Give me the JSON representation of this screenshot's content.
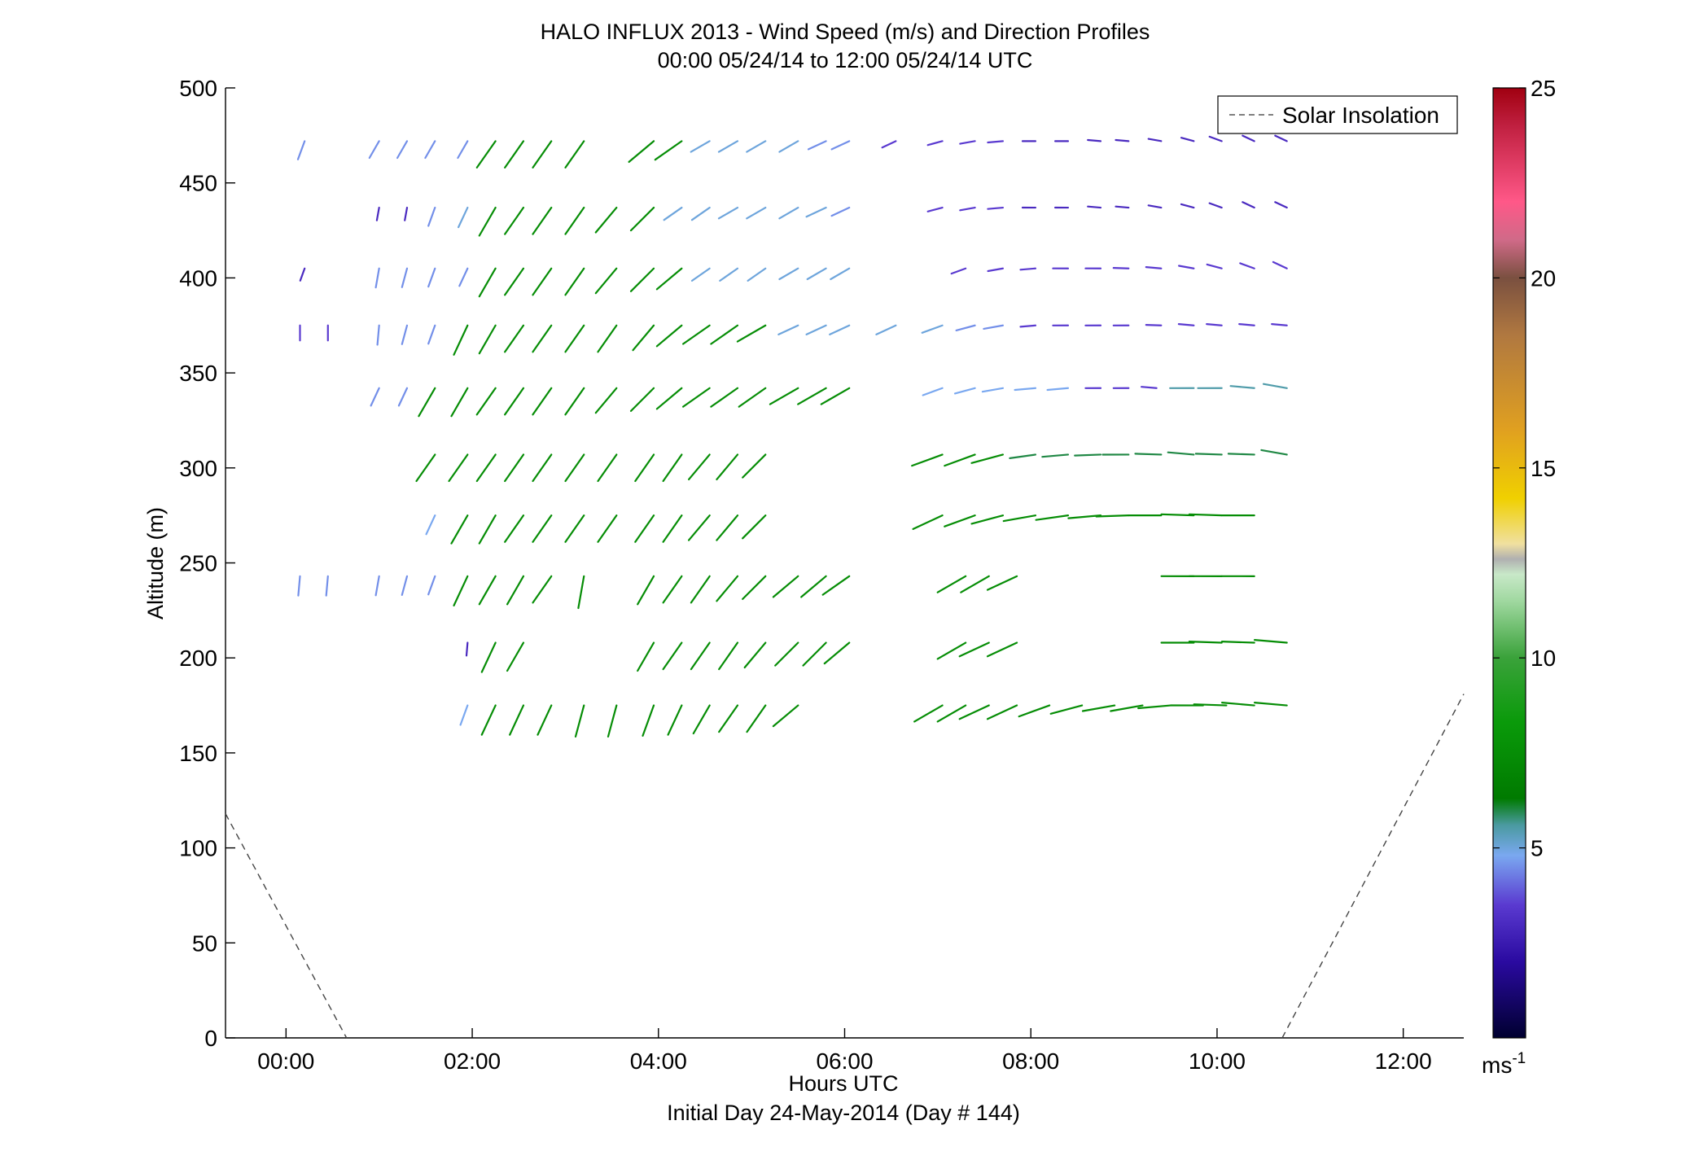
{
  "chart_data": {
    "type": "scatter",
    "title": "HALO INFLUX 2013 - Wind Speed (m/s) and Direction Profiles",
    "subtitle": "00:00 05/24/14 to 12:00 05/24/14  UTC",
    "xlabel": "Hours UTC",
    "xlabel2": "Initial Day 24-May-2014 (Day # 144)",
    "ylabel": "Altitude (m)",
    "xlim": [
      -0.65,
      12.65
    ],
    "ylim": [
      0,
      500
    ],
    "x_ticks": [
      {
        "value": 0,
        "label": "00:00"
      },
      {
        "value": 2,
        "label": "02:00"
      },
      {
        "value": 4,
        "label": "04:00"
      },
      {
        "value": 6,
        "label": "06:00"
      },
      {
        "value": 8,
        "label": "08:00"
      },
      {
        "value": 10,
        "label": "10:00"
      },
      {
        "value": 12,
        "label": "12:00"
      }
    ],
    "y_ticks": [
      {
        "value": 0,
        "label": "0"
      },
      {
        "value": 50,
        "label": "50"
      },
      {
        "value": 100,
        "label": "100"
      },
      {
        "value": 150,
        "label": "150"
      },
      {
        "value": 200,
        "label": "200"
      },
      {
        "value": 250,
        "label": "250"
      },
      {
        "value": 300,
        "label": "300"
      },
      {
        "value": 350,
        "label": "350"
      },
      {
        "value": 400,
        "label": "400"
      },
      {
        "value": 450,
        "label": "450"
      },
      {
        "value": 500,
        "label": "500"
      }
    ],
    "legend": {
      "label": "Solar Insolation",
      "position": "top-right"
    },
    "solar_insolation": [
      {
        "x": [
          -0.65,
          0.65
        ],
        "y": [
          118,
          0
        ]
      },
      {
        "x": [
          10.7,
          12.65
        ],
        "y": [
          0,
          181
        ]
      }
    ],
    "colorbar": {
      "min": 0,
      "max": 25,
      "ticks": [
        5,
        10,
        15,
        20,
        25
      ],
      "tick_labels": [
        "5",
        "10",
        "15",
        "20",
        "25"
      ],
      "unit_label": "ms",
      "unit_exponent": "-1",
      "stops": [
        {
          "v": 0,
          "color": "#000030"
        },
        {
          "v": 2,
          "color": "#2a0aa0"
        },
        {
          "v": 3.5,
          "color": "#5a3ad0"
        },
        {
          "v": 4.8,
          "color": "#7aa8f0"
        },
        {
          "v": 5.6,
          "color": "#4a9aa0"
        },
        {
          "v": 6.3,
          "color": "#007a00"
        },
        {
          "v": 8.3,
          "color": "#0a9a0a"
        },
        {
          "v": 10,
          "color": "#3aa23a"
        },
        {
          "v": 11.5,
          "color": "#a0d8a0"
        },
        {
          "v": 12.2,
          "color": "#c8e8c8"
        },
        {
          "v": 12.6,
          "color": "#b0b0b0"
        },
        {
          "v": 13,
          "color": "#f0e0a0"
        },
        {
          "v": 14.2,
          "color": "#f0d000"
        },
        {
          "v": 16,
          "color": "#e0a020"
        },
        {
          "v": 18.5,
          "color": "#b07840"
        },
        {
          "v": 20,
          "color": "#7a5040"
        },
        {
          "v": 21,
          "color": "#d06a88"
        },
        {
          "v": 22,
          "color": "#ff5888"
        },
        {
          "v": 24,
          "color": "#c02040"
        },
        {
          "v": 25,
          "color": "#a00010"
        }
      ]
    },
    "wind_rows": [
      {
        "alt": 472,
        "x": [
          0.2,
          1.0,
          1.3,
          1.6,
          1.95,
          2.25,
          2.55,
          2.85,
          3.2,
          3.95,
          4.25,
          4.55,
          4.85,
          5.15,
          5.5,
          5.8,
          6.05,
          6.55,
          7.05,
          7.4,
          7.7,
          8.05,
          8.4,
          8.75,
          9.05,
          9.4,
          9.75,
          10.05,
          10.4,
          10.75
        ],
        "s": [
          4.5,
          4.5,
          4.5,
          4.5,
          4.5,
          7.5,
          7.5,
          7.5,
          7.5,
          7.5,
          7.5,
          5.0,
          5.0,
          5.0,
          5.0,
          4.5,
          4.5,
          3.5,
          3.5,
          3.5,
          3.5,
          3.0,
          3.0,
          3.0,
          3.0,
          3.0,
          3.0,
          3.0,
          3.0,
          3.0
        ],
        "d": [
          200,
          210,
          210,
          210,
          210,
          215,
          215,
          215,
          215,
          230,
          235,
          240,
          240,
          240,
          240,
          245,
          245,
          245,
          255,
          260,
          265,
          270,
          270,
          275,
          275,
          280,
          285,
          290,
          295,
          295
        ]
      },
      {
        "alt": 437,
        "x": [
          1.0,
          1.3,
          1.6,
          1.95,
          2.25,
          2.55,
          2.85,
          3.2,
          3.55,
          3.95,
          4.25,
          4.55,
          4.85,
          5.15,
          5.5,
          5.8,
          6.05,
          7.05,
          7.4,
          7.7,
          8.05,
          8.4,
          8.75,
          9.05,
          9.4,
          9.75,
          10.05,
          10.4,
          10.75
        ],
        "s": [
          3.0,
          3.0,
          4.5,
          5.0,
          7.5,
          7.5,
          7.5,
          7.5,
          7.5,
          7.5,
          5.0,
          5.0,
          5.0,
          5.0,
          5.0,
          5.0,
          4.5,
          3.5,
          3.5,
          3.5,
          3.0,
          3.0,
          3.0,
          3.0,
          3.0,
          3.0,
          3.0,
          3.0,
          3.0
        ],
        "d": [
          190,
          190,
          200,
          205,
          210,
          215,
          215,
          215,
          220,
          225,
          235,
          235,
          240,
          240,
          240,
          245,
          245,
          255,
          260,
          265,
          270,
          270,
          275,
          275,
          280,
          285,
          290,
          295,
          295
        ]
      },
      {
        "alt": 405,
        "x": [
          0.2,
          1.0,
          1.3,
          1.6,
          1.95,
          2.25,
          2.55,
          2.85,
          3.2,
          3.55,
          3.95,
          4.25,
          4.55,
          4.85,
          5.15,
          5.5,
          5.8,
          6.05,
          7.3,
          7.7,
          8.05,
          8.4,
          8.75,
          9.05,
          9.4,
          9.75,
          10.05,
          10.4,
          10.75
        ],
        "s": [
          3.0,
          4.5,
          4.5,
          4.5,
          4.5,
          7.5,
          7.5,
          7.5,
          7.5,
          7.5,
          7.5,
          7.5,
          5.0,
          5.0,
          5.0,
          5.0,
          5.0,
          5.0,
          3.5,
          3.5,
          3.5,
          3.5,
          3.5,
          3.5,
          3.5,
          3.5,
          3.5,
          3.5,
          3.5
        ],
        "d": [
          200,
          190,
          195,
          200,
          205,
          210,
          215,
          215,
          215,
          220,
          225,
          230,
          235,
          235,
          235,
          240,
          240,
          240,
          250,
          260,
          265,
          270,
          270,
          272,
          275,
          280,
          285,
          290,
          295
        ]
      },
      {
        "alt": 375,
        "x": [
          0.15,
          0.45,
          1.0,
          1.3,
          1.6,
          1.95,
          2.25,
          2.55,
          2.85,
          3.2,
          3.55,
          3.95,
          4.25,
          4.55,
          4.85,
          5.15,
          5.5,
          5.8,
          6.05,
          6.55,
          7.05,
          7.4,
          7.7,
          8.05,
          8.4,
          8.75,
          9.05,
          9.4,
          9.75,
          10.05,
          10.4,
          10.75
        ],
        "s": [
          3.5,
          3.5,
          4.5,
          4.5,
          4.5,
          7.5,
          7.5,
          7.5,
          7.5,
          7.5,
          7.5,
          7.5,
          7.5,
          7.5,
          7.5,
          7.5,
          5.0,
          5.0,
          5.0,
          5.0,
          5.0,
          4.5,
          4.5,
          3.5,
          3.5,
          3.5,
          3.5,
          3.5,
          3.5,
          3.5,
          3.5,
          3.5
        ],
        "d": [
          180,
          180,
          185,
          195,
          200,
          205,
          210,
          215,
          215,
          215,
          215,
          220,
          230,
          235,
          235,
          240,
          245,
          245,
          245,
          245,
          250,
          255,
          260,
          265,
          270,
          270,
          270,
          272,
          275,
          275,
          275,
          275
        ]
      },
      {
        "alt": 342,
        "x": [
          1.0,
          1.3,
          1.6,
          1.95,
          2.25,
          2.55,
          2.85,
          3.2,
          3.55,
          3.95,
          4.25,
          4.55,
          4.85,
          5.15,
          5.5,
          5.8,
          6.05,
          7.05,
          7.4,
          7.7,
          8.05,
          8.4,
          8.75,
          9.05,
          9.35,
          9.75,
          10.05,
          10.4,
          10.75
        ],
        "s": [
          4.5,
          4.5,
          7.5,
          7.5,
          7.5,
          7.5,
          7.5,
          7.5,
          7.5,
          7.5,
          7.5,
          7.5,
          7.5,
          7.5,
          7.5,
          7.5,
          7.5,
          4.8,
          4.8,
          4.8,
          4.8,
          4.8,
          3.5,
          3.5,
          3.5,
          5.5,
          5.5,
          5.5,
          5.5
        ],
        "d": [
          205,
          205,
          210,
          210,
          215,
          215,
          215,
          215,
          220,
          225,
          230,
          235,
          235,
          235,
          240,
          240,
          240,
          250,
          255,
          260,
          265,
          265,
          270,
          270,
          275,
          270,
          270,
          275,
          280
        ]
      },
      {
        "alt": 307,
        "x": [
          1.6,
          1.95,
          2.25,
          2.55,
          2.85,
          3.2,
          3.55,
          3.95,
          4.25,
          4.55,
          4.85,
          5.15,
          7.05,
          7.4,
          7.7,
          8.05,
          8.4,
          8.75,
          9.05,
          9.4,
          9.75,
          10.05,
          10.4,
          10.75
        ],
        "s": [
          7.5,
          7.5,
          7.5,
          7.5,
          7.5,
          7.5,
          7.5,
          7.5,
          7.5,
          7.5,
          7.5,
          7.5,
          7.5,
          7.5,
          7.5,
          6.0,
          6.0,
          6.0,
          6.0,
          6.0,
          6.0,
          6.0,
          6.0,
          6.0
        ],
        "d": [
          215,
          215,
          215,
          215,
          215,
          215,
          215,
          215,
          215,
          220,
          220,
          225,
          250,
          250,
          255,
          262,
          265,
          268,
          270,
          272,
          275,
          272,
          272,
          280
        ]
      },
      {
        "alt": 275,
        "x": [
          1.6,
          1.95,
          2.25,
          2.55,
          2.85,
          3.2,
          3.55,
          3.95,
          4.25,
          4.55,
          4.85,
          5.15,
          7.05,
          7.4,
          7.7,
          8.05,
          8.4,
          8.75,
          9.05,
          9.4,
          9.75,
          10.05,
          10.4
        ],
        "s": [
          4.8,
          7.5,
          7.5,
          7.5,
          7.5,
          7.5,
          7.5,
          7.5,
          7.5,
          7.5,
          7.5,
          7.5,
          7.5,
          7.5,
          7.5,
          7.5,
          7.5,
          7.5,
          7.5,
          7.5,
          7.5,
          7.5,
          7.5
        ],
        "d": [
          205,
          210,
          210,
          215,
          215,
          215,
          215,
          215,
          215,
          220,
          220,
          225,
          245,
          250,
          255,
          260,
          262,
          265,
          268,
          270,
          272,
          272,
          270
        ]
      },
      {
        "alt": 243,
        "x": [
          0.15,
          0.45,
          1.0,
          1.3,
          1.6,
          1.95,
          2.25,
          2.55,
          2.85,
          3.2,
          3.95,
          4.25,
          4.55,
          4.85,
          5.15,
          5.5,
          5.8,
          6.05,
          7.3,
          7.55,
          7.85,
          9.75,
          10.05,
          10.4
        ],
        "s": [
          4.5,
          4.5,
          4.5,
          4.5,
          4.5,
          7.5,
          7.5,
          7.5,
          7.5,
          7.5,
          7.5,
          7.5,
          7.5,
          7.5,
          7.5,
          7.5,
          7.5,
          7.5,
          7.5,
          7.5,
          7.5,
          7.5,
          7.5,
          7.5
        ],
        "d": [
          185,
          185,
          190,
          195,
          200,
          205,
          210,
          210,
          215,
          190,
          210,
          215,
          215,
          220,
          225,
          230,
          230,
          235,
          240,
          240,
          245,
          270,
          270,
          270
        ]
      },
      {
        "alt": 208,
        "x": [
          1.95,
          2.25,
          2.55,
          3.95,
          4.25,
          4.55,
          4.85,
          5.15,
          5.5,
          5.8,
          6.05,
          7.3,
          7.55,
          7.85,
          9.75,
          10.05,
          10.4,
          10.75
        ],
        "s": [
          3.0,
          7.5,
          7.5,
          7.5,
          7.5,
          7.5,
          7.5,
          7.5,
          7.5,
          7.5,
          7.5,
          7.5,
          7.5,
          7.5,
          7.5,
          7.5,
          7.5,
          7.5
        ],
        "d": [
          185,
          205,
          210,
          210,
          215,
          215,
          215,
          220,
          225,
          225,
          230,
          240,
          245,
          245,
          270,
          272,
          272,
          275
        ]
      },
      {
        "alt": 175,
        "x": [
          1.95,
          2.25,
          2.55,
          2.85,
          3.2,
          3.55,
          3.95,
          4.25,
          4.55,
          4.85,
          5.15,
          5.5,
          7.05,
          7.3,
          7.55,
          7.85,
          8.2,
          8.55,
          8.9,
          9.2,
          9.5,
          9.85,
          10.1,
          10.4,
          10.75
        ],
        "s": [
          4.8,
          7.5,
          7.5,
          7.5,
          7.5,
          7.5,
          7.5,
          7.5,
          7.5,
          7.5,
          7.5,
          7.5,
          7.5,
          7.5,
          7.5,
          7.5,
          7.5,
          7.5,
          7.5,
          7.5,
          7.5,
          7.5,
          7.5,
          7.5,
          7.5
        ],
        "d": [
          200,
          205,
          205,
          205,
          195,
          195,
          200,
          205,
          210,
          215,
          215,
          230,
          240,
          240,
          245,
          245,
          250,
          255,
          260,
          260,
          265,
          270,
          272,
          275,
          275
        ]
      }
    ]
  }
}
